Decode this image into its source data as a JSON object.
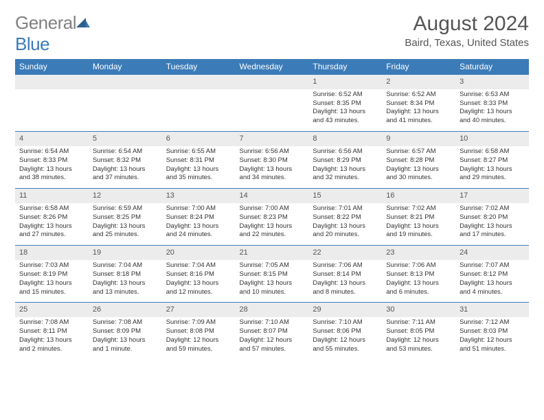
{
  "brand": {
    "text1": "General",
    "text2": "Blue",
    "color_gray": "#808080",
    "color_blue": "#3b7bb8"
  },
  "title": "August 2024",
  "location": "Baird, Texas, United States",
  "colors": {
    "header_bg": "#3b7bb8",
    "header_text": "#ffffff",
    "daynum_bg": "#ececec",
    "border": "#3b7bb8",
    "body_text": "#333333",
    "title_text": "#555555",
    "background": "#ffffff"
  },
  "fonts": {
    "title_size": 30,
    "location_size": 15,
    "th_size": 12,
    "daynum_size": 11,
    "cell_size": 9.5
  },
  "days_header": [
    "Sunday",
    "Monday",
    "Tuesday",
    "Wednesday",
    "Thursday",
    "Friday",
    "Saturday"
  ],
  "weeks": [
    [
      null,
      null,
      null,
      null,
      {
        "n": "1",
        "sr": "Sunrise: 6:52 AM",
        "ss": "Sunset: 8:35 PM",
        "d1": "Daylight: 13 hours",
        "d2": "and 43 minutes."
      },
      {
        "n": "2",
        "sr": "Sunrise: 6:52 AM",
        "ss": "Sunset: 8:34 PM",
        "d1": "Daylight: 13 hours",
        "d2": "and 41 minutes."
      },
      {
        "n": "3",
        "sr": "Sunrise: 6:53 AM",
        "ss": "Sunset: 8:33 PM",
        "d1": "Daylight: 13 hours",
        "d2": "and 40 minutes."
      }
    ],
    [
      {
        "n": "4",
        "sr": "Sunrise: 6:54 AM",
        "ss": "Sunset: 8:33 PM",
        "d1": "Daylight: 13 hours",
        "d2": "and 38 minutes."
      },
      {
        "n": "5",
        "sr": "Sunrise: 6:54 AM",
        "ss": "Sunset: 8:32 PM",
        "d1": "Daylight: 13 hours",
        "d2": "and 37 minutes."
      },
      {
        "n": "6",
        "sr": "Sunrise: 6:55 AM",
        "ss": "Sunset: 8:31 PM",
        "d1": "Daylight: 13 hours",
        "d2": "and 35 minutes."
      },
      {
        "n": "7",
        "sr": "Sunrise: 6:56 AM",
        "ss": "Sunset: 8:30 PM",
        "d1": "Daylight: 13 hours",
        "d2": "and 34 minutes."
      },
      {
        "n": "8",
        "sr": "Sunrise: 6:56 AM",
        "ss": "Sunset: 8:29 PM",
        "d1": "Daylight: 13 hours",
        "d2": "and 32 minutes."
      },
      {
        "n": "9",
        "sr": "Sunrise: 6:57 AM",
        "ss": "Sunset: 8:28 PM",
        "d1": "Daylight: 13 hours",
        "d2": "and 30 minutes."
      },
      {
        "n": "10",
        "sr": "Sunrise: 6:58 AM",
        "ss": "Sunset: 8:27 PM",
        "d1": "Daylight: 13 hours",
        "d2": "and 29 minutes."
      }
    ],
    [
      {
        "n": "11",
        "sr": "Sunrise: 6:58 AM",
        "ss": "Sunset: 8:26 PM",
        "d1": "Daylight: 13 hours",
        "d2": "and 27 minutes."
      },
      {
        "n": "12",
        "sr": "Sunrise: 6:59 AM",
        "ss": "Sunset: 8:25 PM",
        "d1": "Daylight: 13 hours",
        "d2": "and 25 minutes."
      },
      {
        "n": "13",
        "sr": "Sunrise: 7:00 AM",
        "ss": "Sunset: 8:24 PM",
        "d1": "Daylight: 13 hours",
        "d2": "and 24 minutes."
      },
      {
        "n": "14",
        "sr": "Sunrise: 7:00 AM",
        "ss": "Sunset: 8:23 PM",
        "d1": "Daylight: 13 hours",
        "d2": "and 22 minutes."
      },
      {
        "n": "15",
        "sr": "Sunrise: 7:01 AM",
        "ss": "Sunset: 8:22 PM",
        "d1": "Daylight: 13 hours",
        "d2": "and 20 minutes."
      },
      {
        "n": "16",
        "sr": "Sunrise: 7:02 AM",
        "ss": "Sunset: 8:21 PM",
        "d1": "Daylight: 13 hours",
        "d2": "and 19 minutes."
      },
      {
        "n": "17",
        "sr": "Sunrise: 7:02 AM",
        "ss": "Sunset: 8:20 PM",
        "d1": "Daylight: 13 hours",
        "d2": "and 17 minutes."
      }
    ],
    [
      {
        "n": "18",
        "sr": "Sunrise: 7:03 AM",
        "ss": "Sunset: 8:19 PM",
        "d1": "Daylight: 13 hours",
        "d2": "and 15 minutes."
      },
      {
        "n": "19",
        "sr": "Sunrise: 7:04 AM",
        "ss": "Sunset: 8:18 PM",
        "d1": "Daylight: 13 hours",
        "d2": "and 13 minutes."
      },
      {
        "n": "20",
        "sr": "Sunrise: 7:04 AM",
        "ss": "Sunset: 8:16 PM",
        "d1": "Daylight: 13 hours",
        "d2": "and 12 minutes."
      },
      {
        "n": "21",
        "sr": "Sunrise: 7:05 AM",
        "ss": "Sunset: 8:15 PM",
        "d1": "Daylight: 13 hours",
        "d2": "and 10 minutes."
      },
      {
        "n": "22",
        "sr": "Sunrise: 7:06 AM",
        "ss": "Sunset: 8:14 PM",
        "d1": "Daylight: 13 hours",
        "d2": "and 8 minutes."
      },
      {
        "n": "23",
        "sr": "Sunrise: 7:06 AM",
        "ss": "Sunset: 8:13 PM",
        "d1": "Daylight: 13 hours",
        "d2": "and 6 minutes."
      },
      {
        "n": "24",
        "sr": "Sunrise: 7:07 AM",
        "ss": "Sunset: 8:12 PM",
        "d1": "Daylight: 13 hours",
        "d2": "and 4 minutes."
      }
    ],
    [
      {
        "n": "25",
        "sr": "Sunrise: 7:08 AM",
        "ss": "Sunset: 8:11 PM",
        "d1": "Daylight: 13 hours",
        "d2": "and 2 minutes."
      },
      {
        "n": "26",
        "sr": "Sunrise: 7:08 AM",
        "ss": "Sunset: 8:09 PM",
        "d1": "Daylight: 13 hours",
        "d2": "and 1 minute."
      },
      {
        "n": "27",
        "sr": "Sunrise: 7:09 AM",
        "ss": "Sunset: 8:08 PM",
        "d1": "Daylight: 12 hours",
        "d2": "and 59 minutes."
      },
      {
        "n": "28",
        "sr": "Sunrise: 7:10 AM",
        "ss": "Sunset: 8:07 PM",
        "d1": "Daylight: 12 hours",
        "d2": "and 57 minutes."
      },
      {
        "n": "29",
        "sr": "Sunrise: 7:10 AM",
        "ss": "Sunset: 8:06 PM",
        "d1": "Daylight: 12 hours",
        "d2": "and 55 minutes."
      },
      {
        "n": "30",
        "sr": "Sunrise: 7:11 AM",
        "ss": "Sunset: 8:05 PM",
        "d1": "Daylight: 12 hours",
        "d2": "and 53 minutes."
      },
      {
        "n": "31",
        "sr": "Sunrise: 7:12 AM",
        "ss": "Sunset: 8:03 PM",
        "d1": "Daylight: 12 hours",
        "d2": "and 51 minutes."
      }
    ]
  ]
}
